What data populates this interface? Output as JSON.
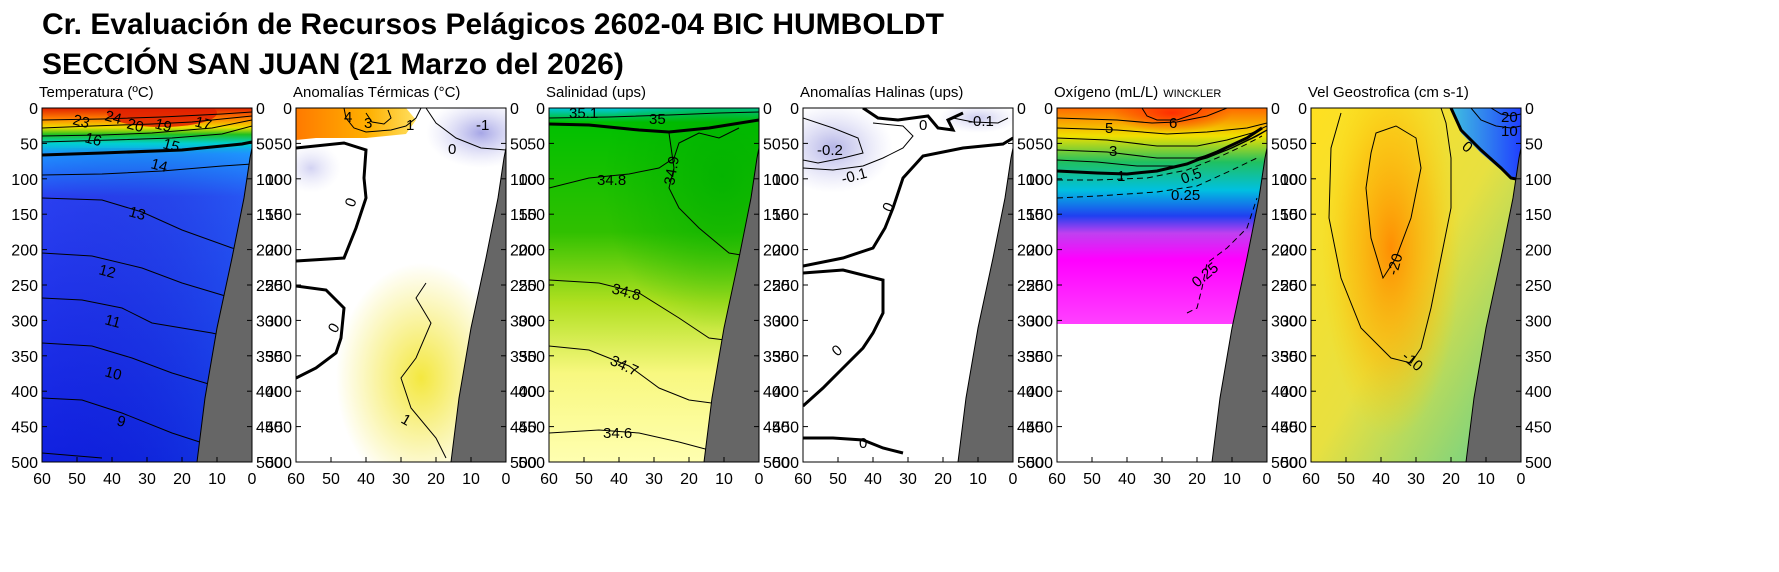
{
  "title": {
    "line1": "Cr. Evaluación de Recursos Pelágicos 2602-04 BIC HUMBOLDT",
    "line2": "SECCIÓN SAN JUAN (21 Marzo del 2026)"
  },
  "chart_data": [
    {
      "type": "contour",
      "title": "Temperatura (ºC)",
      "x_ticks": [
        60,
        50,
        40,
        30,
        20,
        10,
        0
      ],
      "y_ticks": [
        0,
        50,
        100,
        150,
        200,
        250,
        300,
        350,
        400,
        450,
        500
      ],
      "xlim": [
        60,
        0
      ],
      "ylim": [
        0,
        500
      ],
      "contour_labels": [
        "23",
        "24",
        "20",
        "19",
        "17",
        "16",
        "15",
        "14",
        "13",
        "12",
        "11",
        "10",
        "9"
      ],
      "colors": [
        "#1020e0",
        "#2a40f0",
        "#1e90ff",
        "#00d0d0",
        "#20c020",
        "#f0e000",
        "#ff8000",
        "#e02000"
      ]
    },
    {
      "type": "contour",
      "title": "Anomalías Térmicas (°C)",
      "x_ticks": [
        60,
        50,
        40,
        30,
        20,
        10,
        0
      ],
      "y_ticks": [
        0,
        50,
        100,
        150,
        200,
        250,
        300,
        350,
        400,
        450,
        500
      ],
      "xlim": [
        60,
        0
      ],
      "ylim": [
        0,
        500
      ],
      "contour_labels": [
        "4",
        "3",
        "1",
        "-1",
        "0",
        "0",
        "0",
        "1"
      ],
      "colors": [
        "#ff8000",
        "#f0e000",
        "#ffffff",
        "#c8c8f0"
      ]
    },
    {
      "type": "contour",
      "title": "Salinidad (ups)",
      "x_ticks": [
        60,
        50,
        40,
        30,
        20,
        10,
        0
      ],
      "y_ticks": [
        0,
        50,
        100,
        150,
        200,
        250,
        300,
        350,
        400,
        450,
        500
      ],
      "xlim": [
        60,
        0
      ],
      "ylim": [
        0,
        500
      ],
      "contour_labels": [
        "35.1",
        "35",
        "34.9",
        "34.8",
        "34.8",
        "34.7",
        "34.6"
      ],
      "colors": [
        "#00c8e0",
        "#00c000",
        "#b0e020",
        "#ffffb0"
      ]
    },
    {
      "type": "contour",
      "title": "Anomalías Halinas (ups)",
      "x_ticks": [
        60,
        50,
        40,
        30,
        20,
        10,
        0
      ],
      "y_ticks": [
        0,
        50,
        100,
        150,
        200,
        250,
        300,
        350,
        400,
        450,
        500
      ],
      "xlim": [
        60,
        0
      ],
      "ylim": [
        0,
        500
      ],
      "contour_labels": [
        "-0.1",
        "0",
        "-0.2",
        "-0.1",
        "0",
        "0",
        "0"
      ],
      "colors": [
        "#c8c8f0",
        "#ffffff"
      ]
    },
    {
      "type": "contour",
      "title": "Oxígeno (mL/L)",
      "title_suffix": "WINCKLER",
      "x_ticks": [
        60,
        50,
        40,
        30,
        20,
        10,
        0
      ],
      "y_ticks": [
        0,
        50,
        100,
        150,
        200,
        250,
        300,
        350,
        400,
        450,
        500
      ],
      "xlim": [
        60,
        0
      ],
      "ylim": [
        0,
        500
      ],
      "contour_labels": [
        "5",
        "6",
        "3",
        "1",
        "0.5",
        "0.25",
        "0.25"
      ],
      "colors": [
        "#ff4000",
        "#f0e000",
        "#00c0c0",
        "#2040f0",
        "#ff00ff"
      ]
    },
    {
      "type": "contour",
      "title": "Vel Geostrofica (cm s-1)",
      "x_ticks": [
        60,
        50,
        40,
        30,
        20,
        10,
        0
      ],
      "y_ticks": [
        0,
        50,
        100,
        150,
        200,
        250,
        300,
        350,
        400,
        450,
        500
      ],
      "xlim": [
        60,
        0
      ],
      "ylim": [
        0,
        500
      ],
      "contour_labels": [
        "20",
        "10",
        "0",
        "-20",
        "-10"
      ],
      "colors": [
        "#ff9000",
        "#ffe000",
        "#60d090",
        "#2060ff"
      ]
    }
  ]
}
